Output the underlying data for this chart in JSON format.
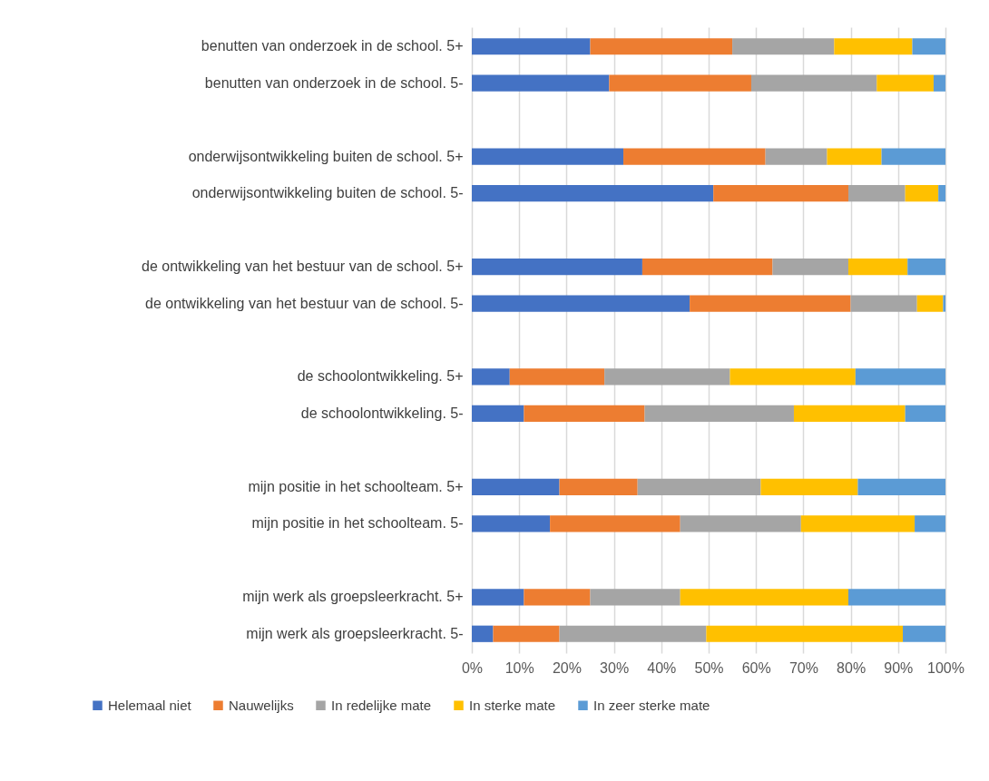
{
  "chart_data": {
    "type": "bar",
    "orientation": "horizontal",
    "stacked": true,
    "categories": [
      "benutten van onderzoek in de school. 5+",
      "benutten van onderzoek in de school. 5-",
      null,
      "onderwijsontwikkeling buiten de school. 5+",
      "onderwijsontwikkeling buiten de school. 5-",
      null,
      "de ontwikkeling van het bestuur van de school. 5+",
      "de ontwikkeling van het bestuur van de school. 5-",
      null,
      "de schoolontwikkeling. 5+",
      "de schoolontwikkeling. 5-",
      null,
      "mijn positie in het schoolteam. 5+",
      "mijn positie in het schoolteam. 5-",
      null,
      "mijn werk als groepsleerkracht. 5+",
      "mijn werk als groepsleerkracht. 5-"
    ],
    "series": [
      {
        "name": "Helemaal niet",
        "color": "#4472c4",
        "values": [
          25,
          29,
          null,
          32,
          51,
          null,
          36,
          46,
          null,
          8,
          11,
          null,
          18.5,
          16.5,
          null,
          11,
          4.5
        ]
      },
      {
        "name": "Nauwelijks",
        "color": "#ed7d31",
        "values": [
          30,
          30,
          null,
          30,
          28.5,
          null,
          27.5,
          34,
          null,
          20,
          25.5,
          null,
          16.5,
          27.5,
          null,
          14,
          14
        ]
      },
      {
        "name": "In redelijke mate",
        "color": "#a5a5a5",
        "values": [
          21.5,
          26.5,
          null,
          13,
          12,
          null,
          16,
          14,
          null,
          26.5,
          31.5,
          null,
          26,
          25.5,
          null,
          19,
          31
        ]
      },
      {
        "name": "In sterke mate",
        "color": "#ffc000",
        "values": [
          16.5,
          12,
          null,
          11.5,
          7,
          null,
          12.5,
          5.5,
          null,
          26.5,
          23.5,
          null,
          20.5,
          24,
          null,
          35.5,
          41.5
        ]
      },
      {
        "name": "In zeer sterke mate",
        "color": "#5b9bd5",
        "values": [
          7,
          2.5,
          null,
          13.5,
          1.5,
          null,
          8,
          0.5,
          null,
          19,
          8.5,
          null,
          18.5,
          6.5,
          null,
          20.5,
          9
        ]
      }
    ],
    "xlim": [
      0,
      100
    ],
    "xticks": [
      {
        "value": 0,
        "label": "0%"
      },
      {
        "value": 10,
        "label": "10%"
      },
      {
        "value": 20,
        "label": "20%"
      },
      {
        "value": 30,
        "label": "30%"
      },
      {
        "value": 40,
        "label": "40%"
      },
      {
        "value": 50,
        "label": "50%"
      },
      {
        "value": 60,
        "label": "60%"
      },
      {
        "value": 70,
        "label": "70%"
      },
      {
        "value": 80,
        "label": "80%"
      },
      {
        "value": 90,
        "label": "90%"
      },
      {
        "value": 100,
        "label": "100%"
      }
    ],
    "grid": "x",
    "legend": "bottom"
  }
}
